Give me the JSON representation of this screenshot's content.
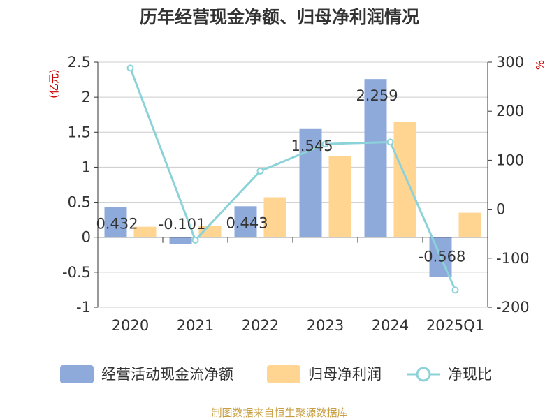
{
  "chart_data": {
    "type": "bar",
    "title": "历年经营现金净额、归母净利润情况",
    "categories": [
      "2020",
      "2021",
      "2022",
      "2023",
      "2024",
      "2025Q1"
    ],
    "series": [
      {
        "name": "经营活动现金流净额",
        "type": "bar",
        "axis": "left",
        "values": [
          0.432,
          -0.101,
          0.443,
          1.545,
          2.259,
          -0.568
        ],
        "labels": [
          "0.432",
          "-0.101",
          "0.443",
          "1.545",
          "2.259",
          "-0.568"
        ],
        "color": "#8eaadb"
      },
      {
        "name": "归母净利润",
        "type": "bar",
        "axis": "left",
        "values": [
          0.15,
          0.16,
          0.57,
          1.16,
          1.65,
          0.35
        ],
        "color": "#ffd591"
      },
      {
        "name": "净现比",
        "type": "line",
        "axis": "right",
        "values": [
          288,
          -63,
          78,
          133,
          137,
          -165
        ],
        "color": "#8cd3d9"
      }
    ],
    "yleft": {
      "unit": "(亿元)",
      "ylim": [
        -1,
        2.5
      ],
      "ticks": [
        2.5,
        2,
        1.5,
        1,
        0.5,
        0,
        -0.5,
        -1
      ],
      "tick_labels": [
        "2.5",
        "2",
        "1.5",
        "1",
        "0.5",
        "0",
        "-0.5",
        "-1"
      ]
    },
    "yright": {
      "unit": "%",
      "ylim": [
        -200,
        300
      ],
      "ticks": [
        300,
        200,
        100,
        0,
        -100,
        -200
      ],
      "tick_labels": [
        "300",
        "200",
        "100",
        "0",
        "-100",
        "-200"
      ]
    },
    "legend_position": "bottom"
  },
  "source_text": "制图数据来自恒生聚源数据库",
  "colors": {
    "unit": "#cc0000",
    "source": "#c8a043",
    "grid": "#cccccc",
    "axis": "#333333"
  }
}
